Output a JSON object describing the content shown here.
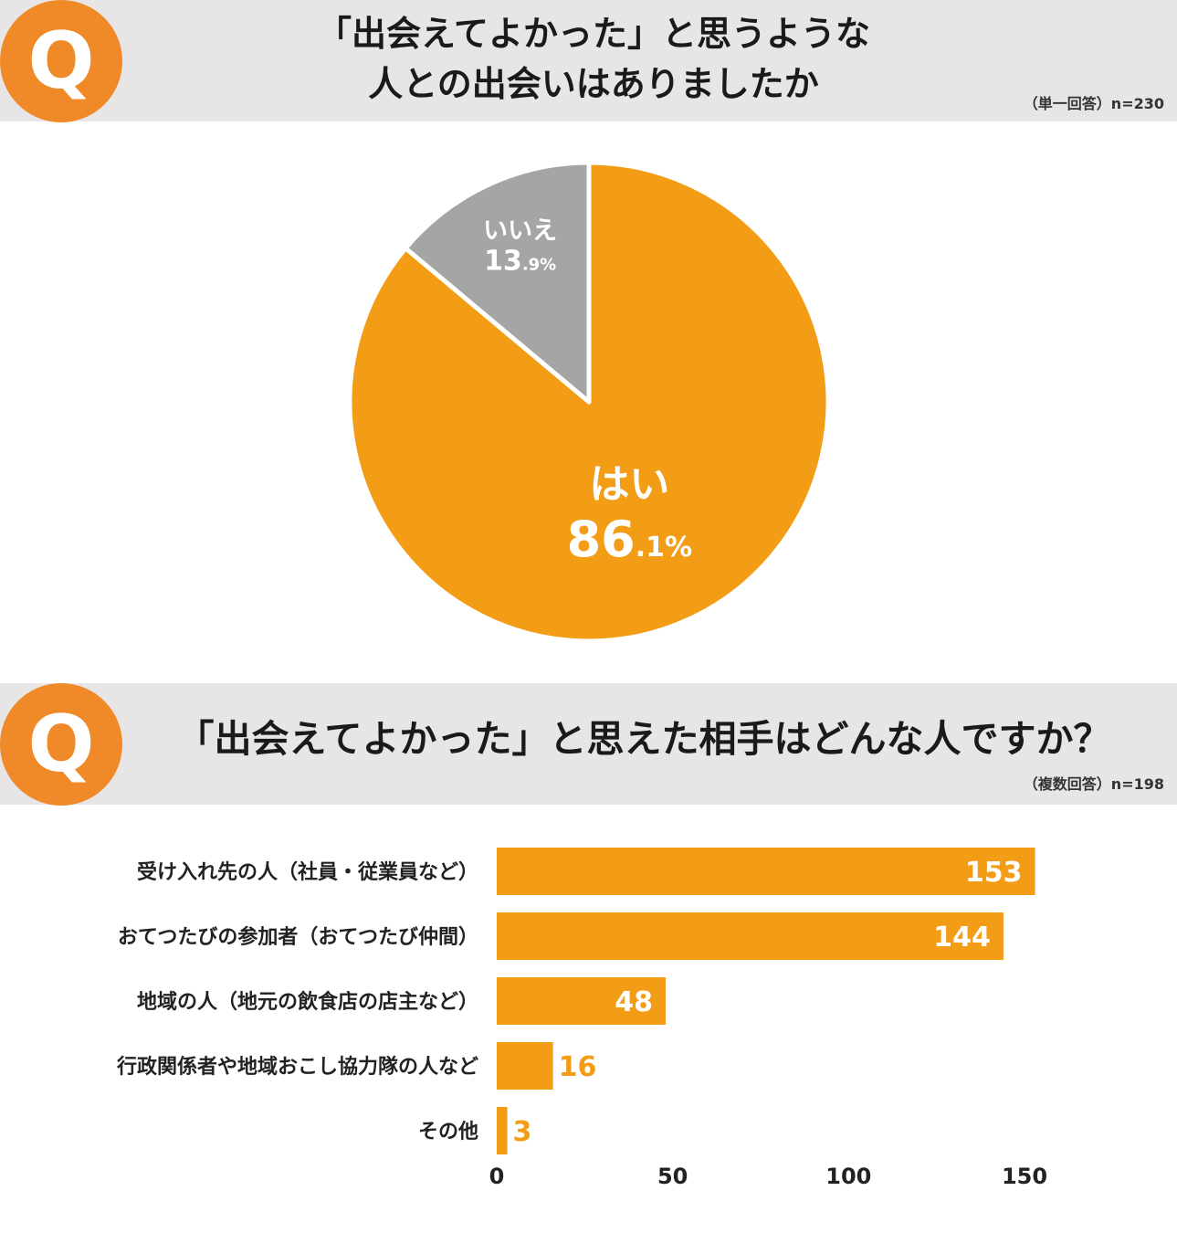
{
  "q1": {
    "badge": "Q",
    "title_lines": [
      "「出会えてよかった」と思うような",
      "人との出会いはありましたか"
    ],
    "note": "（単一回答）n=230"
  },
  "q2": {
    "badge": "Q",
    "title": "「出会えてよかった」と思えた相手はどんな人ですか？",
    "note": "（複数回答）n=198"
  },
  "colors": {
    "accent": "#f08a28",
    "bar": "#f39c16",
    "slice_no": "#a5a5a5",
    "band": "#e7e5e6"
  },
  "chart_data": [
    {
      "type": "pie",
      "title": "",
      "slices": [
        {
          "label": "はい",
          "value": 86.1,
          "value_int": "86",
          "value_dec": ".1%",
          "color": "#f39c16"
        },
        {
          "label": "いいえ",
          "value": 13.9,
          "value_int": "13",
          "value_dec": ".9%",
          "color": "#a5a5a5"
        }
      ]
    },
    {
      "type": "bar",
      "orientation": "horizontal",
      "title": "",
      "categories": [
        "受け入れ先の人（社員・従業員など）",
        "おてつたびの参加者（おてつたび仲間）",
        "地域の人（地元の飲食店の店主など）",
        "行政関係者や地域おこし協力隊の人など",
        "その他"
      ],
      "values": [
        153,
        144,
        48,
        16,
        3
      ],
      "xlim": [
        0,
        170
      ],
      "xticks": [
        0,
        50,
        100,
        150
      ],
      "grid": false,
      "legend": "none"
    }
  ]
}
